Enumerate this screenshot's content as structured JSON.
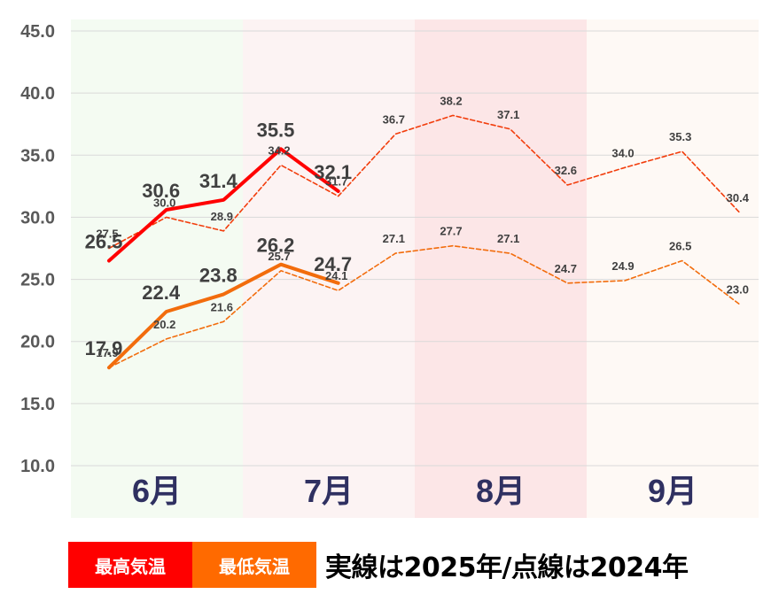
{
  "chart_data": {
    "type": "line",
    "title": "",
    "xlabel": "",
    "ylabel": "",
    "ylim": [
      10.0,
      45.0
    ],
    "yticks": [
      "10.0",
      "15.0",
      "20.0",
      "25.0",
      "30.0",
      "35.0",
      "40.0",
      "45.0"
    ],
    "months": [
      {
        "label": "6月",
        "bg": "#f4fbf2"
      },
      {
        "label": "7月",
        "bg": "#fcf3f3"
      },
      {
        "label": "8月",
        "bg": "#fce6e7"
      },
      {
        "label": "9月",
        "bg": "#fef9f5"
      }
    ],
    "periods_per_month": 3,
    "series": [
      {
        "key": "high_2025",
        "color": "#ff0000",
        "style": "solid",
        "values": [
          26.5,
          30.6,
          31.4,
          35.5,
          32.1,
          null,
          null,
          null,
          null,
          null,
          null,
          null
        ],
        "labels": [
          "26.5",
          "30.6",
          "31.4",
          "35.5",
          "32.1",
          null,
          null,
          null,
          null,
          null,
          null,
          null
        ]
      },
      {
        "key": "low_2025",
        "color": "#f26c0c",
        "style": "solid",
        "values": [
          17.9,
          22.4,
          23.8,
          26.2,
          24.7,
          null,
          null,
          null,
          null,
          null,
          null,
          null
        ],
        "labels": [
          "17.9",
          "22.4",
          "23.8",
          "26.2",
          "24.7",
          null,
          null,
          null,
          null,
          null,
          null,
          null
        ]
      },
      {
        "key": "high_2024",
        "color": "#f23d0c",
        "style": "dashed",
        "values": [
          27.5,
          30.0,
          28.9,
          34.2,
          31.7,
          36.7,
          38.2,
          37.1,
          32.6,
          34.0,
          35.3,
          30.4
        ],
        "labels": [
          "27.5",
          "30.0",
          "28.9",
          "34.2",
          "31.7",
          "36.7",
          "38.2",
          "37.1",
          "32.6",
          "34.0",
          "35.3",
          "30.4"
        ]
      },
      {
        "key": "low_2024",
        "color": "#f26c0c",
        "style": "dashed",
        "values": [
          17.9,
          20.2,
          21.6,
          25.7,
          24.1,
          27.1,
          27.7,
          27.1,
          24.7,
          24.9,
          26.5,
          23.0
        ],
        "labels": [
          "17.9",
          "20.2",
          "21.6",
          "25.7",
          "24.1",
          "27.1",
          "27.7",
          "27.1",
          "24.7",
          "24.9",
          "26.5",
          "23.0"
        ]
      }
    ]
  },
  "legend": {
    "high_label": "最高気温",
    "low_label": "最低気温",
    "high_color": "#ff0000",
    "low_color": "#ff6a00",
    "note": "実線は2025年/点線は2024年"
  }
}
